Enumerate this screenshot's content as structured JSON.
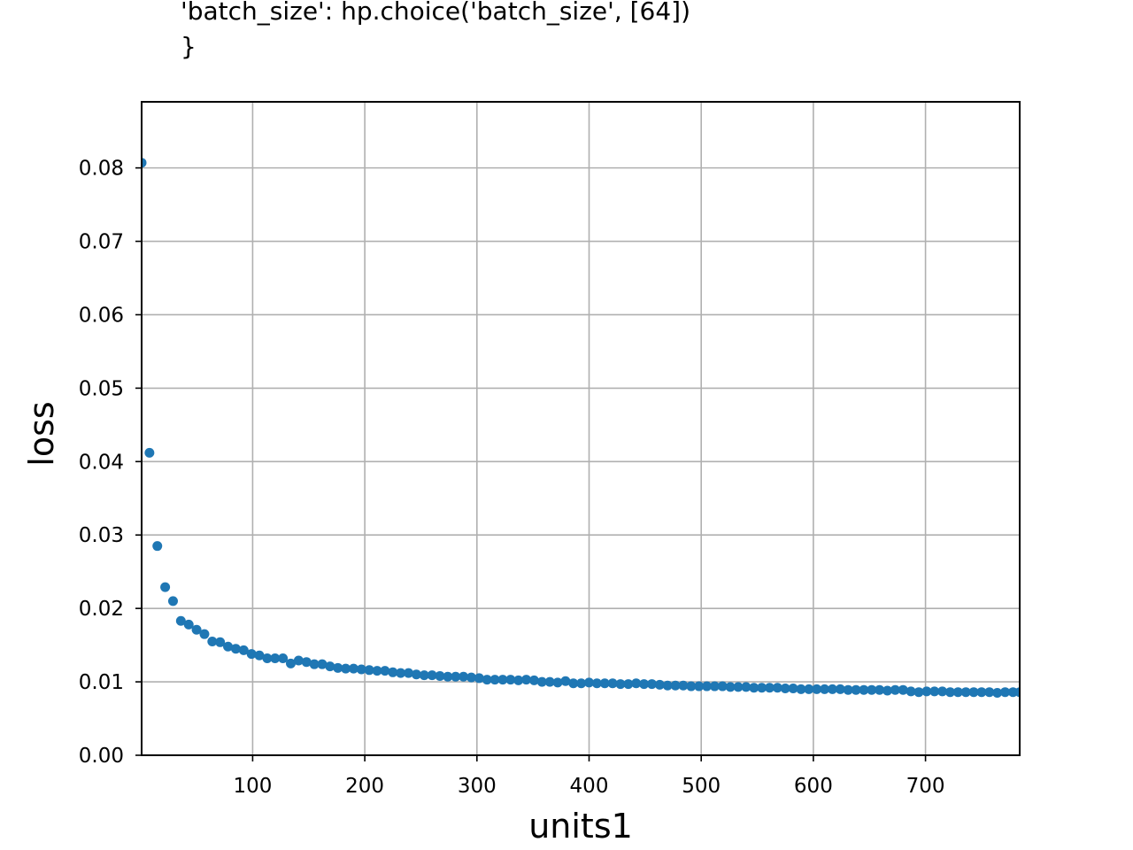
{
  "title_lines": [
    "'batch_size': hp.choice('batch_size', [64])",
    "}"
  ],
  "chart_data": {
    "type": "scatter",
    "xlabel": "units1",
    "ylabel": "loss",
    "xlim": [
      1,
      784
    ],
    "ylim": [
      0,
      0.089
    ],
    "xticks": [
      100,
      200,
      300,
      400,
      500,
      600,
      700
    ],
    "xtick_labels": [
      "100",
      "200",
      "300",
      "400",
      "500",
      "600",
      "700"
    ],
    "yticks": [
      0.0,
      0.01,
      0.02,
      0.03,
      0.04,
      0.05,
      0.06,
      0.07,
      0.08
    ],
    "ytick_labels": [
      "0.00",
      "0.01",
      "0.02",
      "0.03",
      "0.04",
      "0.05",
      "0.06",
      "0.07",
      "0.08"
    ],
    "grid": true,
    "marker_color": "#1f77b4",
    "x": [
      1,
      8,
      15,
      22,
      29,
      36,
      43,
      50,
      57,
      64,
      71,
      78,
      85,
      92,
      99,
      106,
      113,
      120,
      127,
      134,
      141,
      148,
      155,
      162,
      169,
      176,
      183,
      190,
      197,
      204,
      211,
      218,
      225,
      232,
      239,
      246,
      253,
      260,
      267,
      274,
      281,
      288,
      295,
      302,
      309,
      316,
      323,
      330,
      337,
      344,
      351,
      358,
      365,
      372,
      379,
      386,
      393,
      400,
      407,
      414,
      421,
      428,
      435,
      442,
      449,
      456,
      463,
      470,
      477,
      484,
      491,
      498,
      505,
      512,
      519,
      526,
      533,
      540,
      547,
      554,
      561,
      568,
      575,
      582,
      589,
      596,
      603,
      610,
      617,
      624,
      631,
      638,
      645,
      652,
      659,
      666,
      673,
      680,
      687,
      694,
      701,
      708,
      715,
      722,
      729,
      736,
      743,
      750,
      757,
      764,
      771,
      778,
      784
    ],
    "y": [
      0.0807,
      0.0412,
      0.0285,
      0.0229,
      0.021,
      0.0183,
      0.0178,
      0.0171,
      0.0165,
      0.0155,
      0.0154,
      0.0148,
      0.0145,
      0.0143,
      0.0138,
      0.0136,
      0.0132,
      0.0132,
      0.0132,
      0.0125,
      0.0129,
      0.0127,
      0.0124,
      0.0124,
      0.0121,
      0.0119,
      0.0118,
      0.0118,
      0.0117,
      0.0116,
      0.0115,
      0.0115,
      0.0113,
      0.0112,
      0.0112,
      0.011,
      0.0109,
      0.0109,
      0.0108,
      0.0107,
      0.0107,
      0.0107,
      0.0106,
      0.0105,
      0.0103,
      0.0103,
      0.0103,
      0.0103,
      0.0102,
      0.0103,
      0.0102,
      0.01,
      0.01,
      0.0099,
      0.0101,
      0.0098,
      0.0098,
      0.0099,
      0.0098,
      0.0098,
      0.0098,
      0.0097,
      0.0097,
      0.0098,
      0.0097,
      0.0097,
      0.0096,
      0.0095,
      0.0095,
      0.0095,
      0.0094,
      0.0094,
      0.0094,
      0.0094,
      0.0094,
      0.0093,
      0.0093,
      0.0093,
      0.0092,
      0.0092,
      0.0092,
      0.0092,
      0.0091,
      0.0091,
      0.009,
      0.009,
      0.009,
      0.009,
      0.009,
      0.009,
      0.0089,
      0.0089,
      0.0089,
      0.0089,
      0.0089,
      0.0088,
      0.0089,
      0.0089,
      0.0087,
      0.0086,
      0.0087,
      0.0087,
      0.0087,
      0.0086,
      0.0086,
      0.0086,
      0.0086,
      0.0086,
      0.0086,
      0.0085,
      0.0086,
      0.0086,
      0.0086
    ]
  }
}
